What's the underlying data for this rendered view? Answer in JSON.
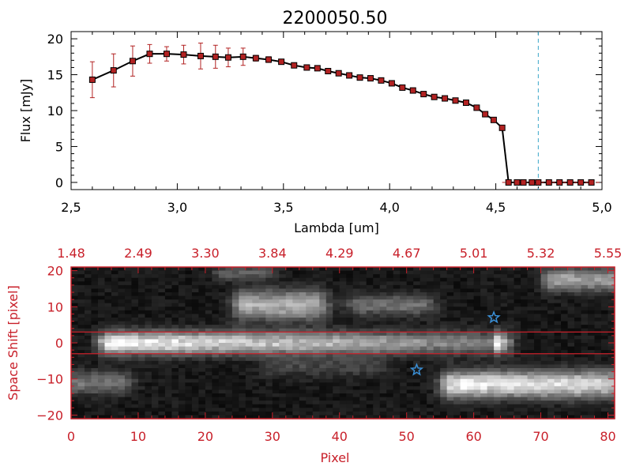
{
  "title": "2200050.50",
  "chart_data": [
    {
      "type": "line",
      "title": "2200050.50",
      "xlabel": "Lambda [um]",
      "ylabel": "Flux [mJy]",
      "xlim": [
        2.5,
        5.0
      ],
      "ylim": [
        -1,
        21
      ],
      "x_ticks": [
        2.5,
        3.0,
        3.5,
        4.0,
        4.5,
        5.0
      ],
      "x_tick_labels": [
        "2,5",
        "3,0",
        "3,5",
        "4,0",
        "4,5",
        "5,0"
      ],
      "y_ticks": [
        0,
        5,
        10,
        15,
        20
      ],
      "y_tick_labels": [
        "0",
        "5",
        "10",
        "15",
        "20"
      ],
      "vline_x": 4.7,
      "vline_color": "#3aa6c9",
      "line_color": "#000000",
      "marker_color": "#b22222",
      "series": [
        {
          "x": [
            2.6,
            2.7,
            2.79,
            2.87,
            2.95,
            3.03,
            3.11,
            3.18,
            3.24,
            3.31,
            3.37,
            3.43,
            3.49,
            3.55,
            3.61,
            3.66,
            3.71,
            3.76,
            3.81,
            3.86,
            3.91,
            3.96,
            4.01,
            4.06,
            4.11,
            4.16,
            4.21,
            4.26,
            4.31,
            4.36,
            4.41,
            4.45,
            4.49,
            4.53,
            4.56,
            4.6,
            4.63,
            4.67,
            4.7,
            4.75,
            4.8,
            4.85,
            4.9,
            4.95
          ],
          "y": [
            14.3,
            15.6,
            16.9,
            17.9,
            17.9,
            17.8,
            17.6,
            17.5,
            17.4,
            17.5,
            17.3,
            17.1,
            16.8,
            16.3,
            16.0,
            15.9,
            15.5,
            15.2,
            14.9,
            14.6,
            14.5,
            14.2,
            13.8,
            13.2,
            12.8,
            12.3,
            11.9,
            11.7,
            11.4,
            11.1,
            10.4,
            9.5,
            8.7,
            7.6,
            0.0,
            0.0,
            0.0,
            0.0,
            0.0,
            0.0,
            0.0,
            0.0,
            0.0,
            0.0
          ],
          "yerr": [
            2.5,
            2.3,
            2.1,
            1.3,
            1.0,
            1.3,
            1.8,
            1.6,
            1.3,
            1.2,
            0.4,
            0.4,
            0.3,
            0.3,
            0.3,
            0.3,
            0.3,
            0.3,
            0.3,
            0.3,
            0.3,
            0.3,
            0.3,
            0.3,
            0.3,
            0.3,
            0.3,
            0.3,
            0.3,
            0.3,
            0.3,
            0.3,
            0.3,
            0.3,
            0.0,
            0.0,
            0.0,
            0.0,
            0.0,
            0.0,
            0.0,
            0.0,
            0.0,
            0.0
          ]
        }
      ]
    },
    {
      "type": "heatmap",
      "xlabel": "Pixel",
      "ylabel": "Space Shift [pixel]",
      "xlim": [
        0,
        81
      ],
      "ylim": [
        -21,
        21
      ],
      "x_ticks": [
        0,
        10,
        20,
        30,
        40,
        50,
        60,
        70,
        80
      ],
      "x_tick_labels": [
        "0",
        "10",
        "20",
        "30",
        "40",
        "50",
        "60",
        "70",
        "80"
      ],
      "y_ticks": [
        -20,
        -10,
        0,
        10,
        20
      ],
      "y_tick_labels": [
        "−20",
        "−10",
        "0",
        "10",
        "20"
      ],
      "top_ticks": [
        0,
        10,
        20,
        30,
        40,
        50,
        60,
        70,
        80
      ],
      "top_tick_labels": [
        "1.48",
        "2.49",
        "3.30",
        "3.84",
        "4.29",
        "4.67",
        "5.01",
        "5.32",
        "5.55"
      ],
      "hlines": [
        3,
        -3
      ],
      "hline_color": "#c8202a",
      "axis_color": "#c8202a",
      "stars": [
        {
          "x": 63,
          "y": 7,
          "color": "#3a8fd6"
        },
        {
          "x": 51.5,
          "y": -7.5,
          "color": "#3a8fd6"
        }
      ],
      "blobs": [
        {
          "x0": 6,
          "x1": 63,
          "y": 0,
          "sy": 2.2,
          "peak": 235,
          "fade_to": 0.42
        },
        {
          "x0": 57,
          "x1": 81,
          "y": -11.5,
          "sy": 2.6,
          "peak": 225,
          "fade_to": 0.85
        },
        {
          "x0": 26,
          "x1": 36,
          "y": 10.5,
          "sy": 2.8,
          "peak": 160,
          "fade_to": 1.0
        },
        {
          "x0": 43,
          "x1": 52,
          "y": 10.5,
          "sy": 2.0,
          "peak": 90,
          "fade_to": 1.0
        },
        {
          "x0": 0,
          "x1": 7,
          "y": -11,
          "sy": 2.2,
          "peak": 95,
          "fade_to": 1.0
        },
        {
          "x0": 72,
          "x1": 81,
          "y": 17.5,
          "sy": 2.2,
          "peak": 140,
          "fade_to": 1.0
        },
        {
          "x0": 23,
          "x1": 28,
          "y": 19.5,
          "sy": 1.5,
          "peak": 70,
          "fade_to": 1.0
        },
        {
          "x0": 30,
          "x1": 45,
          "y": -6.5,
          "sy": 2.0,
          "peak": 45,
          "fade_to": 1.0
        }
      ]
    }
  ]
}
